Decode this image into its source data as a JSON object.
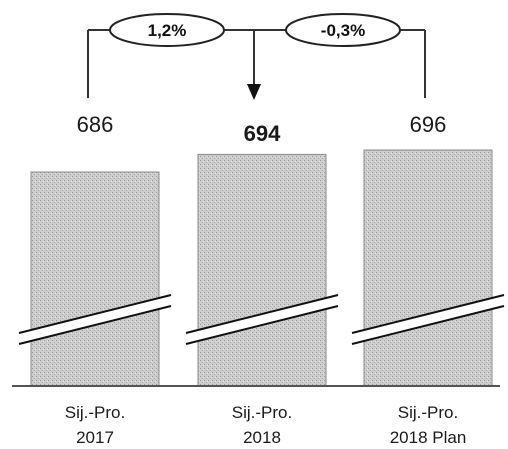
{
  "chart_data": {
    "type": "bar",
    "categories": [
      "Sij.-Pro. 2017",
      "Sij.-Pro. 2018",
      "Sij.-Pro. 2018 Plan"
    ],
    "category_lines": [
      [
        "Sij.-Pro.",
        "2017"
      ],
      [
        "Sij.-Pro.",
        "2018"
      ],
      [
        "Sij.-Pro.",
        "2018 Plan"
      ]
    ],
    "values": [
      686,
      694,
      696
    ],
    "value_labels": [
      "686",
      "694",
      "696"
    ],
    "highlighted": [
      false,
      true,
      false
    ],
    "changes": [
      {
        "from": 0,
        "to": 1,
        "label": "1,2%"
      },
      {
        "from": 1,
        "to": 2,
        "label": "-0,3%"
      }
    ],
    "axis_break": true,
    "bar_color": "#c4c4c4",
    "title": "",
    "xlabel": "",
    "ylabel": ""
  }
}
